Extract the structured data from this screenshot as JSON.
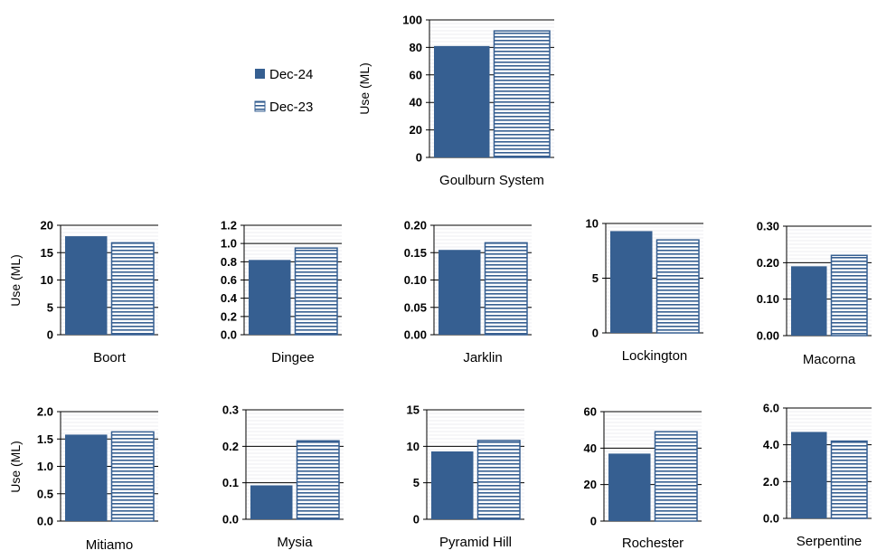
{
  "legend": {
    "series_1": "Dec-24",
    "series_2": "Dec-23"
  },
  "colors": {
    "dec24_fill": "#365F91",
    "dec23_stripe": "#365F91",
    "dec23_background": "#ffffff",
    "gridline": "#000000",
    "minor_grid": "#d9dde6"
  },
  "chart_data": [
    {
      "type": "bar",
      "title": "Goulburn System",
      "ylabel": "Use (ML)",
      "ylim": [
        0,
        100
      ],
      "yticks": [
        "0",
        "20",
        "40",
        "60",
        "80",
        "100"
      ],
      "series": [
        {
          "name": "Dec-24",
          "values": [
            81
          ]
        },
        {
          "name": "Dec-23",
          "values": [
            92
          ]
        }
      ]
    },
    {
      "type": "bar",
      "title": "Boort",
      "ylabel": "Use (ML)",
      "ylim": [
        0,
        20
      ],
      "yticks": [
        "0",
        "5",
        "10",
        "15",
        "20"
      ],
      "series": [
        {
          "name": "Dec-24",
          "values": [
            18
          ]
        },
        {
          "name": "Dec-23",
          "values": [
            16.8
          ]
        }
      ]
    },
    {
      "type": "bar",
      "title": "Dingee",
      "ylabel": "",
      "ylim": [
        0,
        1.2
      ],
      "yticks": [
        "0.0",
        "0.2",
        "0.4",
        "0.6",
        "0.8",
        "1.0",
        "1.2"
      ],
      "series": [
        {
          "name": "Dec-24",
          "values": [
            0.82
          ]
        },
        {
          "name": "Dec-23",
          "values": [
            0.95
          ]
        }
      ]
    },
    {
      "type": "bar",
      "title": "Jarklin",
      "ylabel": "",
      "ylim": [
        0,
        0.2
      ],
      "yticks": [
        "0.00",
        "0.05",
        "0.10",
        "0.15",
        "0.20"
      ],
      "series": [
        {
          "name": "Dec-24",
          "values": [
            0.155
          ]
        },
        {
          "name": "Dec-23",
          "values": [
            0.168
          ]
        }
      ]
    },
    {
      "type": "bar",
      "title": "Lockington",
      "ylabel": "",
      "ylim": [
        0,
        10
      ],
      "yticks": [
        "0",
        "5",
        "10"
      ],
      "series": [
        {
          "name": "Dec-24",
          "values": [
            9.3
          ]
        },
        {
          "name": "Dec-23",
          "values": [
            8.5
          ]
        }
      ]
    },
    {
      "type": "bar",
      "title": "Macorna",
      "ylabel": "",
      "ylim": [
        0,
        0.3
      ],
      "yticks": [
        "0.00",
        "0.10",
        "0.20",
        "0.30"
      ],
      "series": [
        {
          "name": "Dec-24",
          "values": [
            0.19
          ]
        },
        {
          "name": "Dec-23",
          "values": [
            0.22
          ]
        }
      ]
    },
    {
      "type": "bar",
      "title": "Mitiamo",
      "ylabel": "Use (ML)",
      "ylim": [
        0,
        2
      ],
      "yticks": [
        "0.0",
        "0.5",
        "1.0",
        "1.5",
        "2.0"
      ],
      "series": [
        {
          "name": "Dec-24",
          "values": [
            1.58
          ]
        },
        {
          "name": "Dec-23",
          "values": [
            1.63
          ]
        }
      ]
    },
    {
      "type": "bar",
      "title": "Mysia",
      "ylabel": "",
      "ylim": [
        0,
        0.3
      ],
      "yticks": [
        "0.0",
        "0.1",
        "0.2",
        "0.3"
      ],
      "series": [
        {
          "name": "Dec-24",
          "values": [
            0.093
          ]
        },
        {
          "name": "Dec-23",
          "values": [
            0.215
          ]
        }
      ]
    },
    {
      "type": "bar",
      "title": "Pyramid Hill",
      "ylabel": "",
      "ylim": [
        0,
        15
      ],
      "yticks": [
        "0",
        "5",
        "10",
        "15"
      ],
      "series": [
        {
          "name": "Dec-24",
          "values": [
            9.3
          ]
        },
        {
          "name": "Dec-23",
          "values": [
            10.8
          ]
        }
      ]
    },
    {
      "type": "bar",
      "title": "Rochester",
      "ylabel": "",
      "ylim": [
        0,
        60
      ],
      "yticks": [
        "0",
        "20",
        "40",
        "60"
      ],
      "series": [
        {
          "name": "Dec-24",
          "values": [
            37
          ]
        },
        {
          "name": "Dec-23",
          "values": [
            49
          ]
        }
      ]
    },
    {
      "type": "bar",
      "title": "Serpentine",
      "ylabel": "",
      "ylim": [
        0,
        6
      ],
      "yticks": [
        "0.0",
        "2.0",
        "4.0",
        "6.0"
      ],
      "series": [
        {
          "name": "Dec-24",
          "values": [
            4.7
          ]
        },
        {
          "name": "Dec-23",
          "values": [
            4.2
          ]
        }
      ]
    }
  ]
}
